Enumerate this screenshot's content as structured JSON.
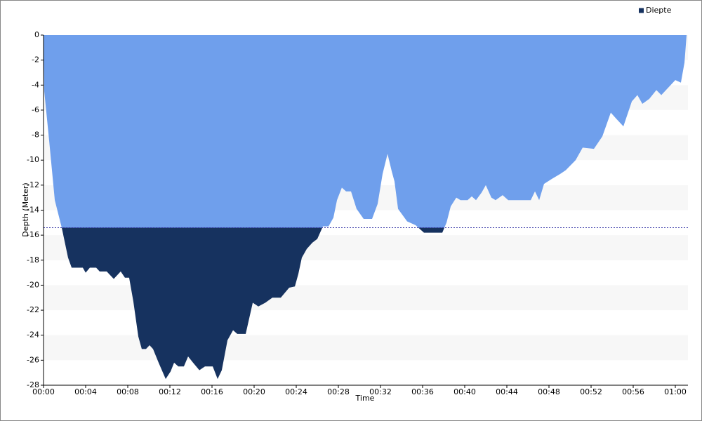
{
  "chart_data": {
    "type": "area",
    "x_label": "Time",
    "y_label": "Depth (Meter)",
    "x": [
      0,
      0.07,
      0.53,
      1.07,
      1.73,
      2.33,
      2.67,
      3.73,
      4,
      4.4,
      5,
      5.33,
      6,
      6.67,
      7.33,
      7.73,
      8.13,
      8.53,
      9,
      9.33,
      9.73,
      10.07,
      10.4,
      10.93,
      11.6,
      12.07,
      12.4,
      12.8,
      13.33,
      13.73,
      14.2,
      14.8,
      15.33,
      16.07,
      16.53,
      16.93,
      17.47,
      18,
      18.4,
      19.2,
      19.87,
      20.4,
      21.07,
      21.73,
      22.53,
      23.33,
      23.87,
      24.2,
      24.53,
      25,
      25.53,
      26,
      26.53,
      27.07,
      27.53,
      27.87,
      28.33,
      28.73,
      29.2,
      29.73,
      30.4,
      31.2,
      31.73,
      32.2,
      32.67,
      33.07,
      33.33,
      33.67,
      34.53,
      35.33,
      36.13,
      37.87,
      38.27,
      38.67,
      39.2,
      39.6,
      40.27,
      40.67,
      41.07,
      41.6,
      42,
      42.53,
      42.93,
      43.6,
      44.13,
      46.27,
      46.67,
      47.07,
      47.53,
      48.27,
      49.07,
      49.6,
      50.53,
      51.2,
      52.27,
      53.07,
      53.87,
      54.4,
      55.07,
      55.87,
      56.4,
      56.87,
      57.53,
      58.2,
      58.67,
      59.33,
      60,
      60.53,
      60.87,
      61.07
    ],
    "series": [
      {
        "name": "Diepte",
        "color": "#6f9fec",
        "deep_color": "#16325f",
        "values": [
          0,
          -4.5,
          -8.4,
          -13.2,
          -15.4,
          -17.8,
          -18.6,
          -18.6,
          -19,
          -18.6,
          -18.6,
          -18.9,
          -18.9,
          -19.5,
          -18.9,
          -19.4,
          -19.4,
          -21.3,
          -24.1,
          -25.1,
          -25.1,
          -24.8,
          -25.1,
          -26.2,
          -27.5,
          -26.9,
          -26.2,
          -26.5,
          -26.5,
          -25.7,
          -26.2,
          -26.8,
          -26.5,
          -26.5,
          -27.5,
          -26.8,
          -24.4,
          -23.6,
          -23.9,
          -23.9,
          -21.4,
          -21.7,
          -21.4,
          -21,
          -21,
          -20.2,
          -20.1,
          -19.1,
          -17.8,
          -17.1,
          -16.6,
          -16.3,
          -15.3,
          -15.3,
          -14.6,
          -13.2,
          -12.2,
          -12.5,
          -12.5,
          -13.9,
          -14.7,
          -14.7,
          -13.5,
          -11.1,
          -9.5,
          -10.9,
          -11.7,
          -13.9,
          -14.9,
          -15.2,
          -15.8,
          -15.8,
          -15,
          -13.7,
          -13,
          -13.2,
          -13.2,
          -12.9,
          -13.2,
          -12.6,
          -12,
          -13,
          -13.2,
          -12.8,
          -13.2,
          -13.2,
          -12.5,
          -13.2,
          -11.9,
          -11.5,
          -11.1,
          -10.8,
          -10,
          -9,
          -9.1,
          -8.1,
          -6.2,
          -6.7,
          -7.3,
          -5.3,
          -4.8,
          -5.5,
          -5.1,
          -4.4,
          -4.8,
          -4.2,
          -3.6,
          -3.8,
          -2.2,
          0
        ]
      }
    ],
    "threshold": -15.4,
    "xlim": [
      0,
      61.2
    ],
    "ylim": [
      -28,
      0
    ],
    "xticks": [
      {
        "value": 0,
        "label": "00:00"
      },
      {
        "value": 4,
        "label": "00:04"
      },
      {
        "value": 8,
        "label": "00:08"
      },
      {
        "value": 12,
        "label": "00:12"
      },
      {
        "value": 16,
        "label": "00:16"
      },
      {
        "value": 20,
        "label": "00:20"
      },
      {
        "value": 24,
        "label": "00:24"
      },
      {
        "value": 28,
        "label": "00:28"
      },
      {
        "value": 32,
        "label": "00:32"
      },
      {
        "value": 36,
        "label": "00:36"
      },
      {
        "value": 40,
        "label": "00:40"
      },
      {
        "value": 44,
        "label": "00:44"
      },
      {
        "value": 48,
        "label": "00:48"
      },
      {
        "value": 52,
        "label": "00:52"
      },
      {
        "value": 56,
        "label": "00:56"
      },
      {
        "value": 60,
        "label": "01:00"
      }
    ],
    "yticks": [
      0,
      -2,
      -4,
      -6,
      -8,
      -10,
      -12,
      -14,
      -16,
      -18,
      -20,
      -22,
      -24,
      -26,
      -28
    ],
    "legend": "top-right",
    "grid": "bands"
  }
}
